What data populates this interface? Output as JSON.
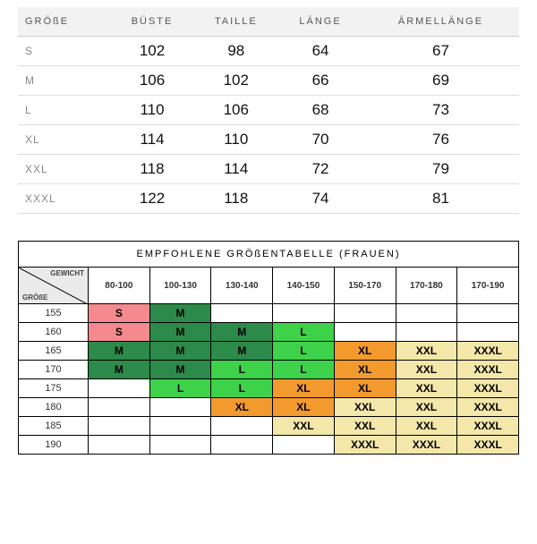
{
  "table1": {
    "headers": [
      "GRÖßE",
      "BÜSTE",
      "TAILLE",
      "LÄNGE",
      "ÄRMELLÄNGE"
    ],
    "rows": [
      {
        "size": "S",
        "bust": "102",
        "waist": "98",
        "length": "64",
        "sleeve": "67"
      },
      {
        "size": "M",
        "bust": "106",
        "waist": "102",
        "length": "66",
        "sleeve": "69"
      },
      {
        "size": "L",
        "bust": "110",
        "waist": "106",
        "length": "68",
        "sleeve": "73"
      },
      {
        "size": "XL",
        "bust": "114",
        "waist": "110",
        "length": "70",
        "sleeve": "76"
      },
      {
        "size": "XXL",
        "bust": "118",
        "waist": "114",
        "length": "72",
        "sleeve": "79"
      },
      {
        "size": "XXXL",
        "bust": "122",
        "waist": "118",
        "length": "74",
        "sleeve": "81"
      }
    ]
  },
  "table2": {
    "title": "EMPFOHLENE GRÖßENTABELLE (FRAUEN)",
    "diag_top": "GEWICHT",
    "diag_bottom": "GRÖßE",
    "weights": [
      "80-100",
      "100-130",
      "130-140",
      "140-150",
      "150-170",
      "170-180",
      "170-190"
    ],
    "heights": [
      "155",
      "160",
      "165",
      "170",
      "175",
      "180",
      "185",
      "190"
    ],
    "palette": {
      "pink": "#f48a8f",
      "darkgreen": "#2c8a4a",
      "brightgreen": "#3dd24a",
      "orange": "#f39a2e",
      "paleyellow": "#f3e7a9",
      "diag_bg": "#eaeaea"
    },
    "grid": [
      [
        {
          "v": "S",
          "c": "pink"
        },
        {
          "v": "M",
          "c": "darkgreen"
        },
        {
          "v": "",
          "c": null
        },
        {
          "v": "",
          "c": null
        },
        {
          "v": "",
          "c": null
        },
        {
          "v": "",
          "c": null
        },
        {
          "v": "",
          "c": null
        }
      ],
      [
        {
          "v": "S",
          "c": "pink"
        },
        {
          "v": "M",
          "c": "darkgreen"
        },
        {
          "v": "M",
          "c": "darkgreen"
        },
        {
          "v": "L",
          "c": "brightgreen"
        },
        {
          "v": "",
          "c": null
        },
        {
          "v": "",
          "c": null
        },
        {
          "v": "",
          "c": null
        }
      ],
      [
        {
          "v": "M",
          "c": "darkgreen"
        },
        {
          "v": "M",
          "c": "darkgreen"
        },
        {
          "v": "M",
          "c": "darkgreen"
        },
        {
          "v": "L",
          "c": "brightgreen"
        },
        {
          "v": "XL",
          "c": "orange"
        },
        {
          "v": "XXL",
          "c": "paleyellow"
        },
        {
          "v": "XXXL",
          "c": "paleyellow"
        }
      ],
      [
        {
          "v": "M",
          "c": "darkgreen"
        },
        {
          "v": "M",
          "c": "darkgreen"
        },
        {
          "v": "L",
          "c": "brightgreen"
        },
        {
          "v": "L",
          "c": "brightgreen"
        },
        {
          "v": "XL",
          "c": "orange"
        },
        {
          "v": "XXL",
          "c": "paleyellow"
        },
        {
          "v": "XXXL",
          "c": "paleyellow"
        }
      ],
      [
        {
          "v": "",
          "c": null
        },
        {
          "v": "L",
          "c": "brightgreen"
        },
        {
          "v": "L",
          "c": "brightgreen"
        },
        {
          "v": "XL",
          "c": "orange"
        },
        {
          "v": "XL",
          "c": "orange"
        },
        {
          "v": "XXL",
          "c": "paleyellow"
        },
        {
          "v": "XXXL",
          "c": "paleyellow"
        }
      ],
      [
        {
          "v": "",
          "c": null
        },
        {
          "v": "",
          "c": null
        },
        {
          "v": "XL",
          "c": "orange"
        },
        {
          "v": "XL",
          "c": "orange"
        },
        {
          "v": "XXL",
          "c": "paleyellow"
        },
        {
          "v": "XXL",
          "c": "paleyellow"
        },
        {
          "v": "XXXL",
          "c": "paleyellow"
        }
      ],
      [
        {
          "v": "",
          "c": null
        },
        {
          "v": "",
          "c": null
        },
        {
          "v": "",
          "c": null
        },
        {
          "v": "XXL",
          "c": "paleyellow"
        },
        {
          "v": "XXL",
          "c": "paleyellow"
        },
        {
          "v": "XXL",
          "c": "paleyellow"
        },
        {
          "v": "XXXL",
          "c": "paleyellow"
        }
      ],
      [
        {
          "v": "",
          "c": null
        },
        {
          "v": "",
          "c": null
        },
        {
          "v": "",
          "c": null
        },
        {
          "v": "",
          "c": null
        },
        {
          "v": "XXXL",
          "c": "paleyellow"
        },
        {
          "v": "XXXL",
          "c": "paleyellow"
        },
        {
          "v": "XXXL",
          "c": "paleyellow"
        }
      ]
    ]
  }
}
